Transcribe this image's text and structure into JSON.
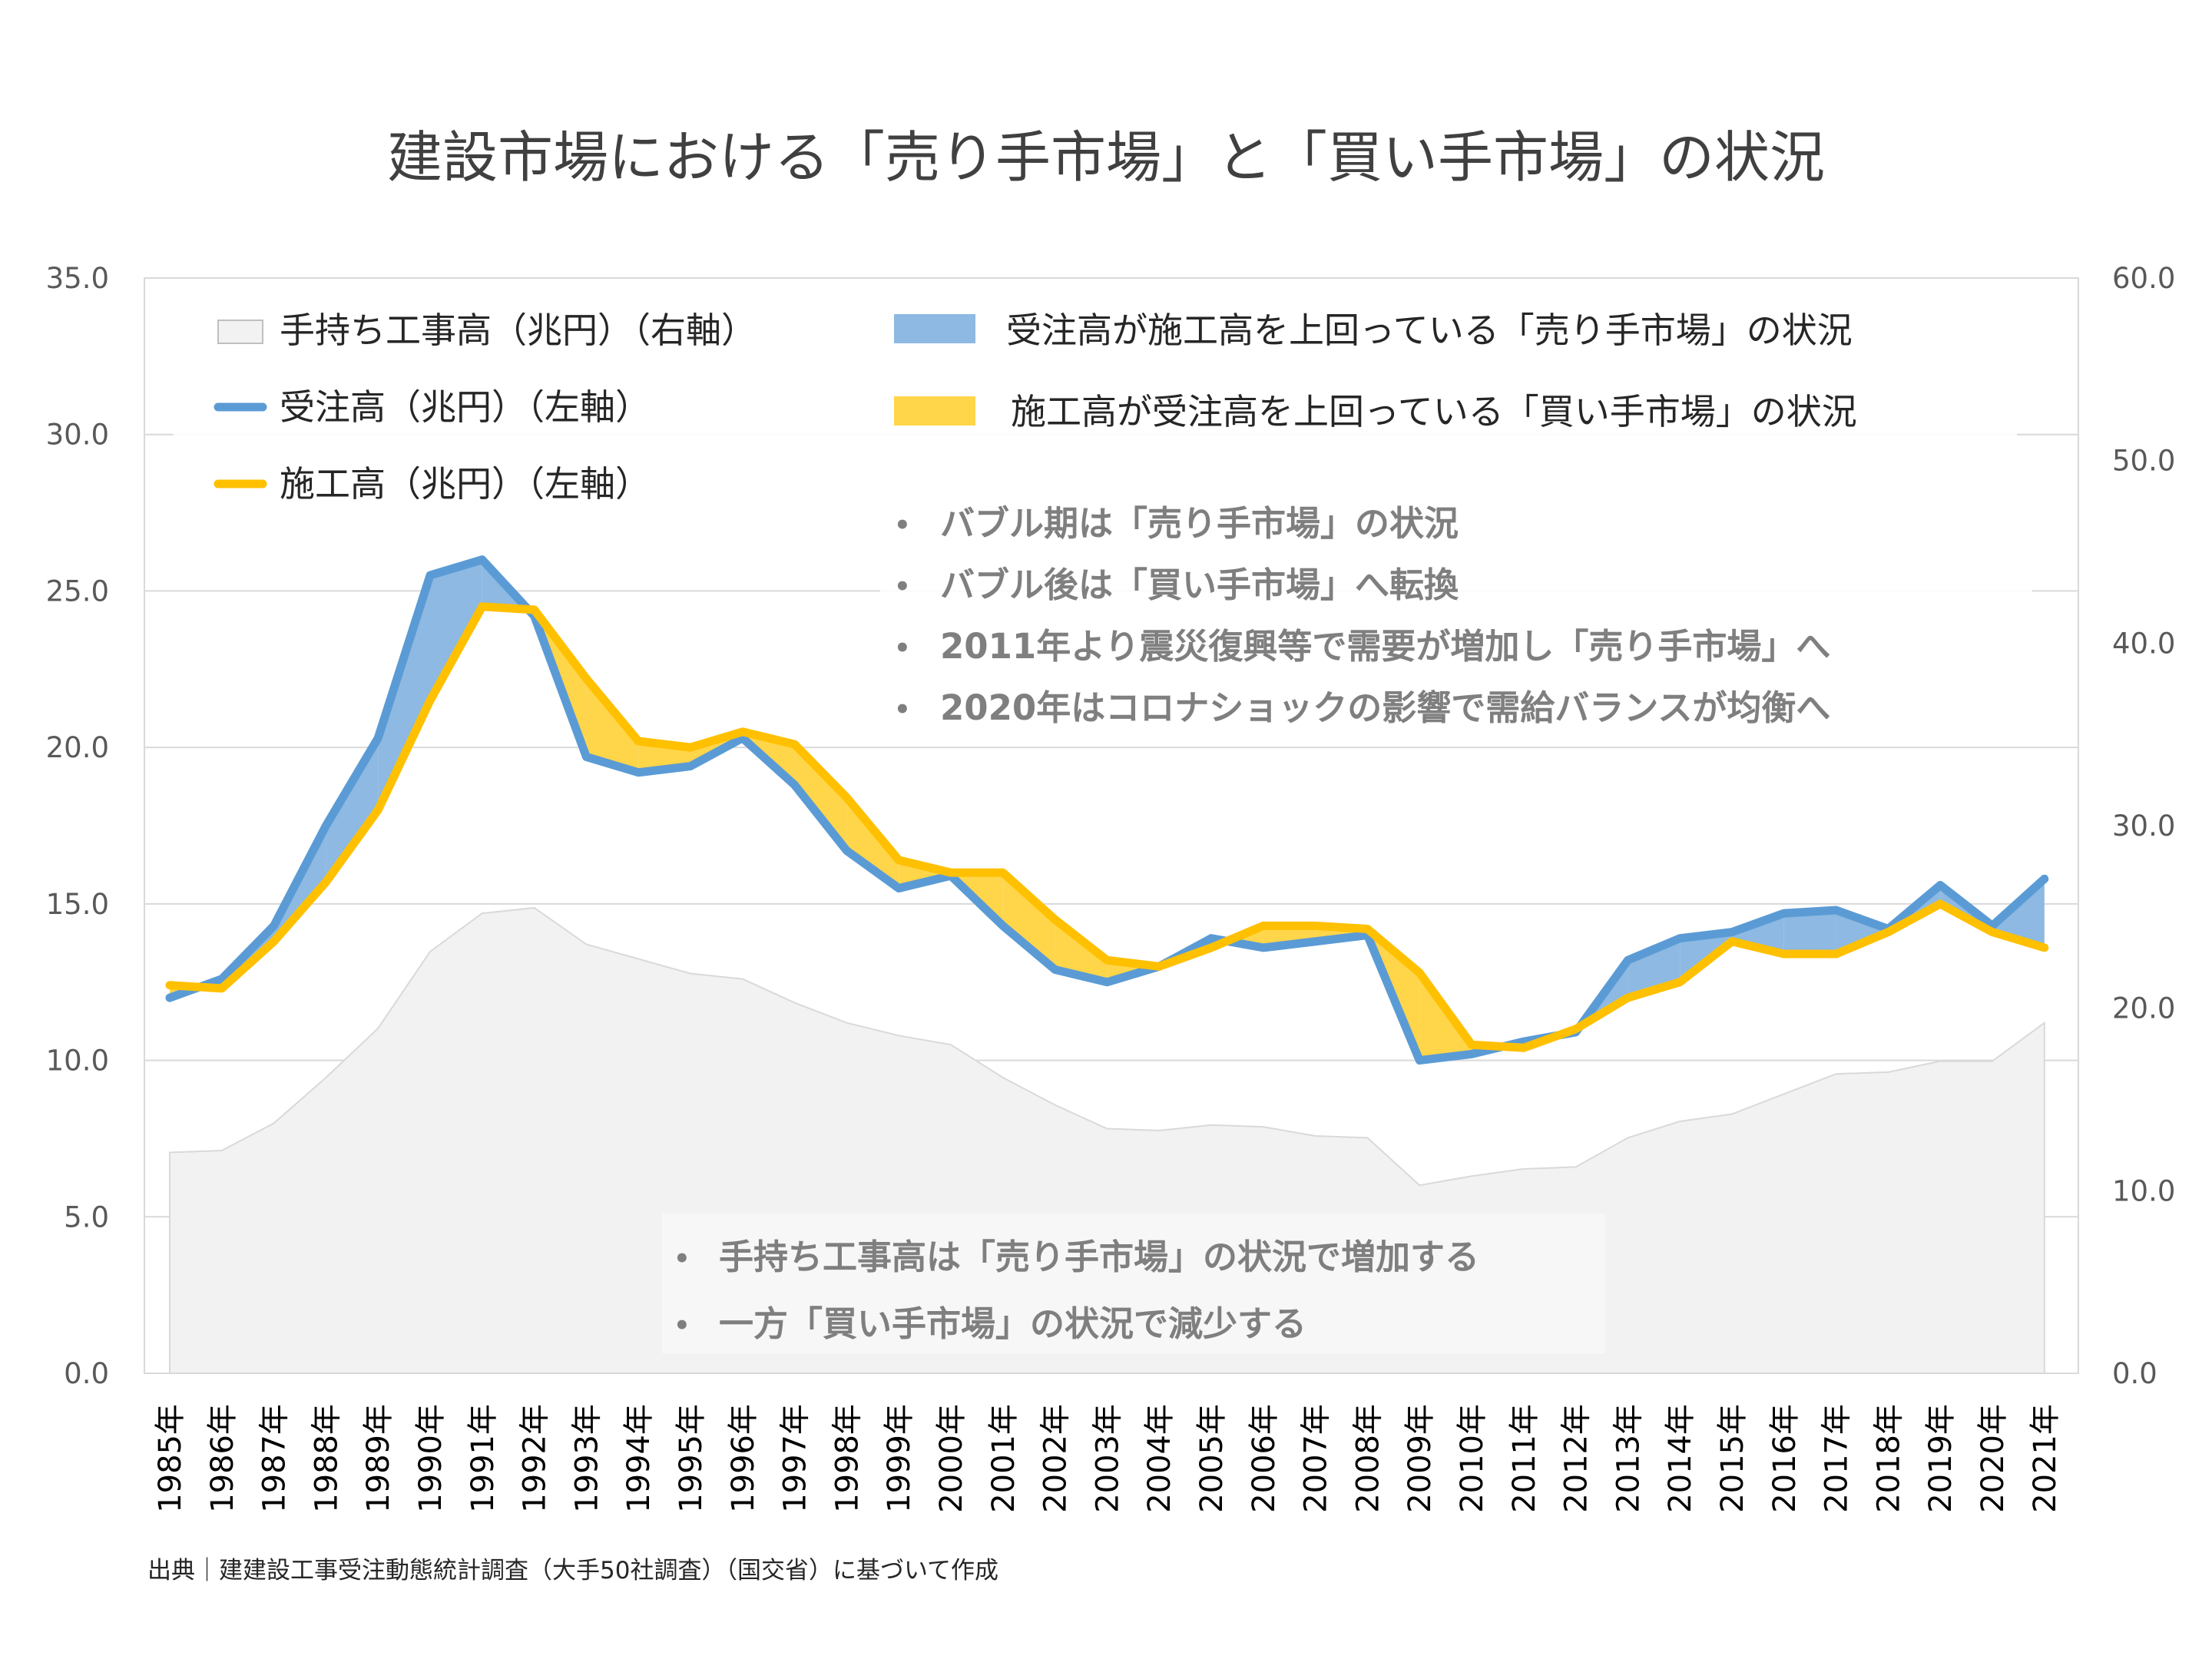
{
  "chart_data": {
    "type": "line",
    "title": "建設市場における「売り手市場」と「買い手市場」の状況",
    "x": [
      "1985年",
      "1986年",
      "1987年",
      "1988年",
      "1989年",
      "1990年",
      "1991年",
      "1992年",
      "1993年",
      "1994年",
      "1995年",
      "1996年",
      "1997年",
      "1998年",
      "1999年",
      "2000年",
      "2001年",
      "2002年",
      "2003年",
      "2004年",
      "2005年",
      "2006年",
      "2007年",
      "2008年",
      "2009年",
      "2010年",
      "2011年",
      "2012年",
      "2013年",
      "2014年",
      "2015年",
      "2016年",
      "2017年",
      "2018年",
      "2019年",
      "2020年",
      "2021年"
    ],
    "series": [
      {
        "name": "受注高（兆円）（左軸）",
        "axis": "left",
        "color": "#5b9bd5",
        "values": [
          12.0,
          12.6,
          14.3,
          17.5,
          20.3,
          25.5,
          26.0,
          24.2,
          19.7,
          19.2,
          19.4,
          20.3,
          18.8,
          16.7,
          15.5,
          15.9,
          14.3,
          12.9,
          12.5,
          13.0,
          13.9,
          13.6,
          13.8,
          14.0,
          10.0,
          10.2,
          10.6,
          10.9,
          13.2,
          13.9,
          14.1,
          14.7,
          14.8,
          14.2,
          15.6,
          14.3,
          15.8
        ]
      },
      {
        "name": "施工高（兆円）（左軸）",
        "axis": "left",
        "color": "#ffc000",
        "values": [
          12.4,
          12.3,
          13.8,
          15.7,
          18.0,
          21.5,
          24.5,
          24.4,
          22.2,
          20.2,
          20.0,
          20.5,
          20.1,
          18.4,
          16.4,
          16.0,
          16.0,
          14.5,
          13.2,
          13.0,
          13.6,
          14.3,
          14.3,
          14.2,
          12.8,
          10.5,
          10.4,
          11.0,
          12.0,
          12.5,
          13.8,
          13.4,
          13.4,
          14.1,
          15.0,
          14.1,
          13.6
        ]
      },
      {
        "name": "手持ち工事高（兆円）（右軸）",
        "axis": "right",
        "color": "#f2f2f2",
        "values": [
          12.1,
          12.2,
          13.7,
          16.2,
          18.9,
          23.1,
          25.2,
          25.5,
          23.5,
          22.7,
          21.9,
          21.6,
          20.3,
          19.2,
          18.5,
          18.0,
          16.2,
          14.7,
          13.4,
          13.3,
          13.6,
          13.5,
          13.0,
          12.9,
          10.3,
          10.8,
          11.2,
          11.3,
          12.9,
          13.8,
          14.2,
          15.3,
          16.4,
          16.5,
          17.1,
          17.1,
          19.2
        ]
      }
    ],
    "ylim_left": [
      0,
      35
    ],
    "yticks_left": [
      "35.0",
      "30.0",
      "25.0",
      "20.0",
      "15.0",
      "10.0",
      "5.0",
      "0.0"
    ],
    "ylim_right": [
      0,
      60
    ],
    "yticks_right": [
      "60.0",
      "50.0",
      "40.0",
      "30.0",
      "20.0",
      "10.0",
      "0.0"
    ],
    "grid": true,
    "legend": {
      "left": [
        "手持ち工事高（兆円）（右軸）",
        "受注高（兆円）（左軸）",
        "施工高（兆円）（左軸）"
      ],
      "right": [
        "受注高が施工高を上回っている「売り手市場」の状況",
        "施工高が受注高を上回っている「買い手市場」の状況"
      ],
      "fill_sell_color": "#8db9e2",
      "fill_buy_color": "#ffd54a"
    },
    "annotations_top": [
      "バブル期は「売り手市場」の状況",
      "バブル後は「買い手市場」へ転換",
      "2011年より震災復興等で需要が増加し「売り手市場」へ",
      "2020年はコロナショックの影響で需給バランスが均衡へ"
    ],
    "annotations_bottom": [
      "手持ち工事高は「売り手市場」の状況で増加する",
      "一方「買い手市場」の状況で減少する"
    ],
    "bullet": "•",
    "source": "出典｜建建設工事受注動態統計調査（大手50社調査）（国交省）に基づいて作成"
  }
}
